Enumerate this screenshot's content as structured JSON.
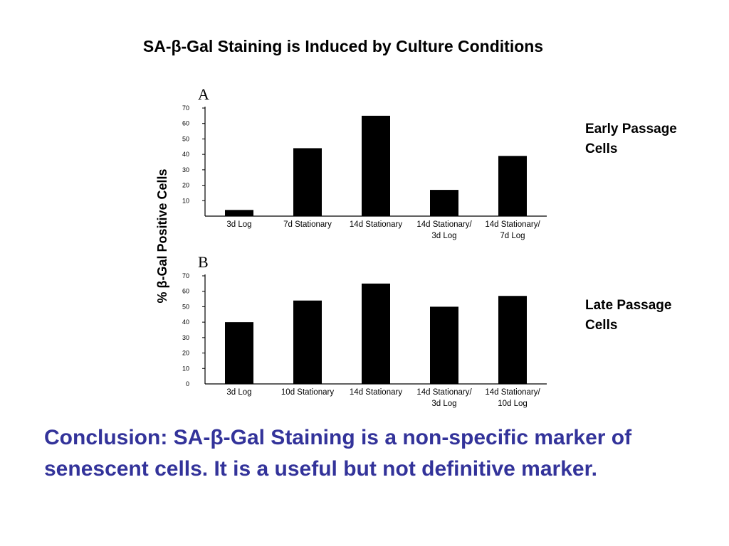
{
  "title": "SA-β-Gal Staining is Induced by Culture Conditions",
  "side_labels": {
    "a": [
      "Early Passage",
      "Cells"
    ],
    "b": [
      "Late Passage",
      "Cells"
    ]
  },
  "conclusion": [
    "Conclusion: SA-β-Gal Staining is a non-specific marker of",
    "senescent cells. It is a useful but not definitive marker."
  ],
  "y_axis_label": "% β-Gal Positive Cells",
  "chart_data": [
    {
      "type": "bar",
      "panel": "A",
      "categories": [
        "3d Log",
        "7d Stationary",
        "14d Stationary",
        "14d Stationary/\n3d Log",
        "14d Stationary/\n7d Log"
      ],
      "values": [
        4,
        44,
        65,
        17,
        39
      ],
      "ylim": [
        0,
        70
      ],
      "yticks": [
        10,
        20,
        30,
        40,
        50,
        60,
        70
      ],
      "bar_color": "#000000"
    },
    {
      "type": "bar",
      "panel": "B",
      "categories": [
        "3d Log",
        "10d Stationary",
        "14d Stationary",
        "14d Stationary/\n3d Log",
        "14d Stationary/\n10d Log"
      ],
      "values": [
        40,
        54,
        65,
        50,
        57
      ],
      "ylim": [
        0,
        70
      ],
      "yticks": [
        0,
        10,
        20,
        30,
        40,
        50,
        60,
        70
      ],
      "bar_color": "#000000"
    }
  ]
}
